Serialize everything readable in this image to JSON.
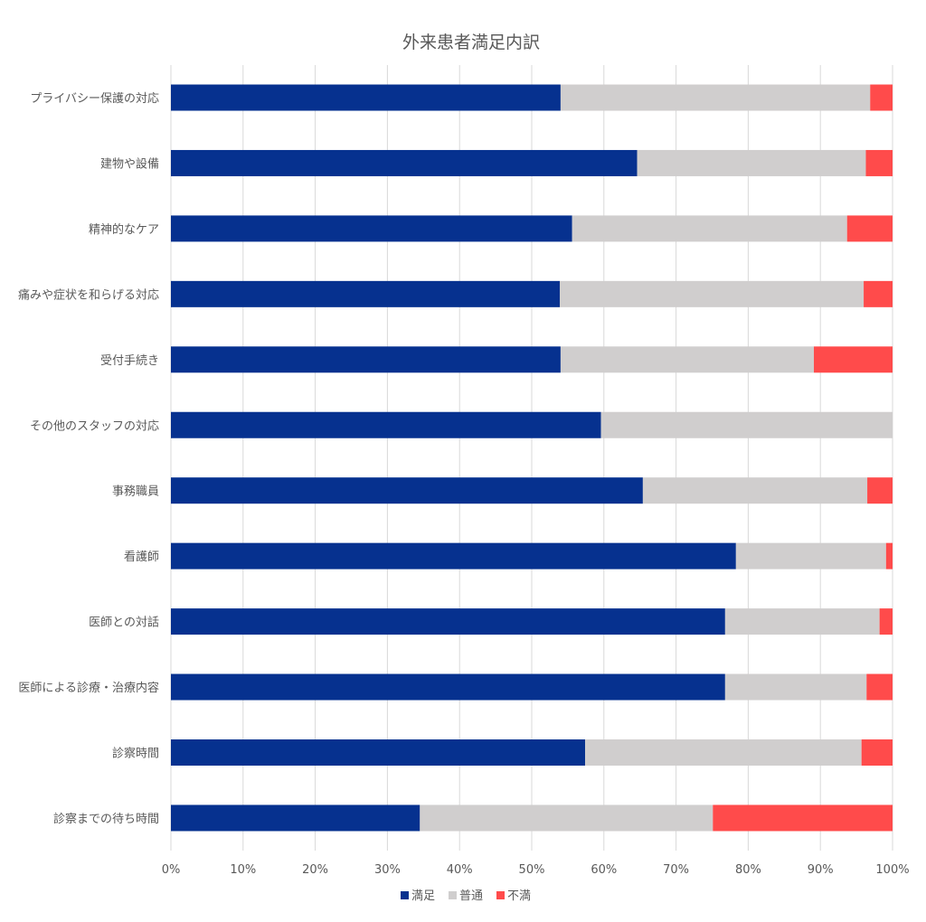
{
  "chart_data": {
    "type": "bar",
    "orientation": "horizontal",
    "stacked": "percent",
    "title": "外来患者満足内訳",
    "categories": [
      "プライバシー保護の対応",
      "建物や設備",
      "精神的なケア",
      "痛みや症状を和らげる対応",
      "受付手続き",
      "その他のスタッフの対応",
      "事務職員",
      "看護師",
      "医師との対話",
      "医師による診療・治療内容",
      "診察時間",
      "診察までの待ち時間"
    ],
    "series": [
      {
        "name": "満足",
        "color": "#06318F",
        "values": [
          54.0,
          64.6,
          55.6,
          53.9,
          54.0,
          59.6,
          65.4,
          78.3,
          76.8,
          76.8,
          57.4,
          34.5
        ]
      },
      {
        "name": "普通",
        "color": "#D0CECE",
        "values": [
          42.9,
          31.7,
          38.1,
          42.1,
          35.1,
          40.4,
          31.1,
          20.8,
          21.4,
          19.6,
          38.3,
          40.6
        ]
      },
      {
        "name": "不満",
        "color": "#FF4B4B",
        "values": [
          3.1,
          3.7,
          6.3,
          4.0,
          10.9,
          0.0,
          3.5,
          0.9,
          1.8,
          3.6,
          4.3,
          24.9
        ]
      }
    ],
    "xticks": [
      "0%",
      "10%",
      "20%",
      "30%",
      "40%",
      "50%",
      "60%",
      "70%",
      "80%",
      "90%",
      "100%"
    ],
    "xlim": [
      0,
      100
    ],
    "grid": "vertical",
    "legend": "bottom"
  }
}
